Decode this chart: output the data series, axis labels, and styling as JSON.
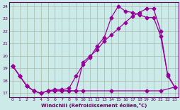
{
  "bg_color": "#cceae8",
  "line_color": "#990099",
  "grid_color": "#aabbaa",
  "axis_color": "#660066",
  "xlabel": "Windchill (Refroidissement éolien,°C)",
  "xlim": [
    -0.5,
    23.5
  ],
  "ylim": [
    16.7,
    24.3
  ],
  "yticks": [
    17,
    18,
    19,
    20,
    21,
    22,
    23,
    24
  ],
  "xticks": [
    0,
    1,
    2,
    3,
    4,
    5,
    6,
    7,
    8,
    9,
    10,
    11,
    12,
    13,
    14,
    15,
    16,
    17,
    18,
    19,
    20,
    21,
    22,
    23
  ],
  "line1_x": [
    0,
    1,
    2,
    3,
    4,
    5,
    6,
    7,
    8,
    9,
    10,
    11,
    12,
    13,
    14,
    15,
    16,
    17,
    18,
    19,
    20,
    21,
    22,
    23
  ],
  "line1_y": [
    19.2,
    18.4,
    17.6,
    17.2,
    17.0,
    17.2,
    17.3,
    17.3,
    17.4,
    18.4,
    19.3,
    19.9,
    20.8,
    21.5,
    23.1,
    24.0,
    23.6,
    23.5,
    23.3,
    23.1,
    23.1,
    21.6,
    18.5,
    17.5
  ],
  "line2_x": [
    0,
    1,
    2,
    3,
    4,
    5,
    6,
    7,
    8,
    9,
    10,
    11,
    12,
    13,
    14,
    15,
    16,
    17,
    18,
    19,
    20,
    21,
    22,
    23
  ],
  "line2_y": [
    19.2,
    18.4,
    17.6,
    17.2,
    17.0,
    17.2,
    17.2,
    17.2,
    17.2,
    17.2,
    19.5,
    20.0,
    20.5,
    21.2,
    21.7,
    22.2,
    22.7,
    23.2,
    23.5,
    23.8,
    23.8,
    22.0,
    18.4,
    17.5
  ],
  "line3_x": [
    0,
    1,
    2,
    3,
    4,
    5,
    6,
    7,
    8,
    9,
    10,
    14,
    19,
    21,
    23
  ],
  "line3_y": [
    19.2,
    18.4,
    17.6,
    17.2,
    17.0,
    17.2,
    17.2,
    17.2,
    17.2,
    17.2,
    17.2,
    17.2,
    17.2,
    17.2,
    17.5
  ]
}
